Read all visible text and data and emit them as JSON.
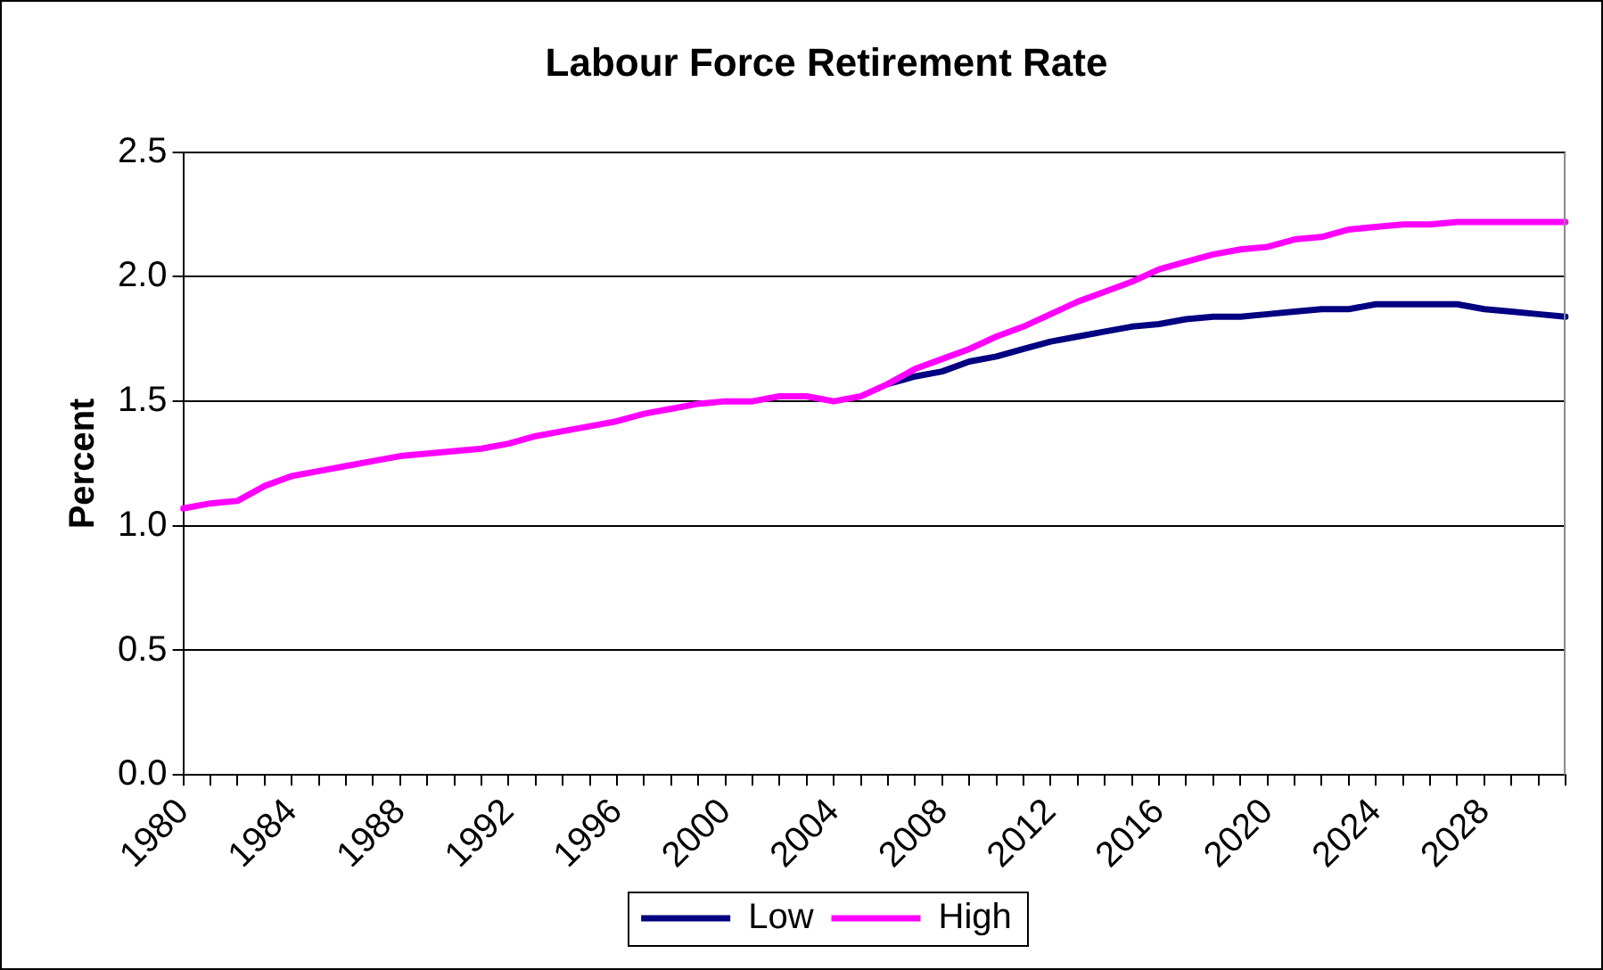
{
  "chart_data": {
    "type": "line",
    "title": "Labour Force Retirement Rate",
    "ylabel": "Percent",
    "categories": [
      "1980",
      null,
      null,
      null,
      "1984",
      null,
      null,
      null,
      "1988",
      null,
      null,
      null,
      "1992",
      null,
      null,
      null,
      "1996",
      null,
      null,
      null,
      "2000",
      null,
      null,
      null,
      "2004",
      null,
      null,
      null,
      "2008",
      null,
      null,
      null,
      "2012",
      null,
      null,
      null,
      "2016",
      null,
      null,
      null,
      "2020",
      null,
      null,
      null,
      "2024",
      null,
      null,
      null,
      "2028",
      null,
      null,
      null
    ],
    "series": [
      {
        "name": "Low",
        "color": "#000080",
        "values": [
          null,
          null,
          null,
          null,
          null,
          null,
          null,
          null,
          null,
          null,
          null,
          null,
          null,
          null,
          null,
          null,
          null,
          null,
          null,
          null,
          null,
          null,
          null,
          null,
          null,
          null,
          1.57,
          1.6,
          1.62,
          1.66,
          1.68,
          1.71,
          1.74,
          1.76,
          1.78,
          1.8,
          1.81,
          1.83,
          1.84,
          1.84,
          1.85,
          1.86,
          1.87,
          1.87,
          1.89,
          1.89,
          1.89,
          1.89,
          1.87,
          1.86,
          1.85,
          1.84
        ]
      },
      {
        "name": "High",
        "color": "#ff00ff",
        "values": [
          1.07,
          1.09,
          1.1,
          1.16,
          1.2,
          1.22,
          1.24,
          1.26,
          1.28,
          1.29,
          1.3,
          1.31,
          1.33,
          1.36,
          1.38,
          1.4,
          1.42,
          1.45,
          1.47,
          1.49,
          1.5,
          1.5,
          1.52,
          1.52,
          1.5,
          1.52,
          1.57,
          1.63,
          1.67,
          1.71,
          1.76,
          1.8,
          1.85,
          1.9,
          1.94,
          1.98,
          2.03,
          2.06,
          2.09,
          2.11,
          2.12,
          2.15,
          2.16,
          2.19,
          2.2,
          2.21,
          2.21,
          2.22,
          2.22,
          2.22,
          2.22,
          2.22
        ]
      }
    ],
    "ylim": [
      0,
      2.5
    ],
    "yticks": [
      {
        "value": 0,
        "label": "0.0"
      },
      {
        "value": 0.5,
        "label": "0.5"
      },
      {
        "value": 1,
        "label": "1.0"
      },
      {
        "value": 1.5,
        "label": "1.5"
      },
      {
        "value": 2,
        "label": "2.0"
      },
      {
        "value": 2.5,
        "label": "2.5"
      }
    ],
    "grid": "y",
    "legend": "bottom",
    "marker": "none",
    "line_style": "solid"
  }
}
